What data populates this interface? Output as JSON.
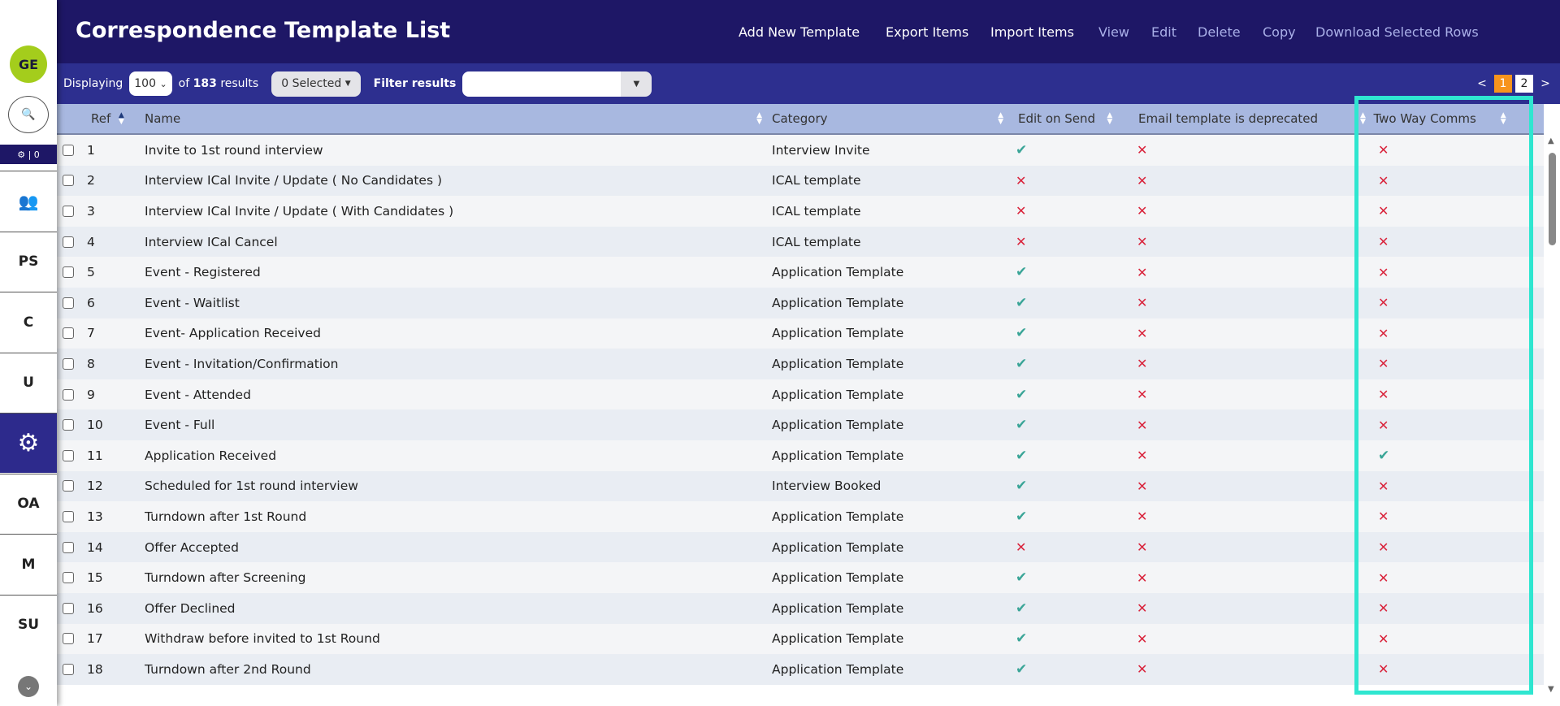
{
  "sidebar": {
    "avatar": "GE",
    "badge": "| 0",
    "items": [
      {
        "label": "",
        "icon": "users-icon"
      },
      {
        "label": "PS"
      },
      {
        "label": "C"
      },
      {
        "label": "U"
      },
      {
        "label": "",
        "icon": "gear-icon",
        "active": true
      },
      {
        "label": "OA"
      },
      {
        "label": "M"
      },
      {
        "label": "SU"
      }
    ]
  },
  "header": {
    "title": "Correspondence Template List",
    "actions": [
      "Add New Template",
      "Export Items",
      "Import Items",
      "View",
      "Edit",
      "Delete",
      "Copy",
      "Download Selected Rows"
    ]
  },
  "toolbar": {
    "displaying": "Displaying",
    "page_size": "100",
    "of": "of",
    "total": "183",
    "results": "results",
    "selected": "0 Selected",
    "filter_label": "Filter results",
    "filter_value": "",
    "pages": [
      "1",
      "2"
    ],
    "current_page": "1",
    "prev": "<",
    "next": ">"
  },
  "columns": [
    "Ref",
    "Name",
    "Category",
    "Edit on Send",
    "Email template is deprecated",
    "Two Way Comms"
  ],
  "rows": [
    {
      "ref": "1",
      "name": "Invite to 1st round interview",
      "category": "Interview Invite",
      "edit": true,
      "dep": false,
      "two": false
    },
    {
      "ref": "2",
      "name": "Interview ICal Invite / Update ( No Candidates )",
      "category": "ICAL template",
      "edit": false,
      "dep": false,
      "two": false
    },
    {
      "ref": "3",
      "name": "Interview ICal Invite / Update ( With Candidates )",
      "category": "ICAL template",
      "edit": false,
      "dep": false,
      "two": false
    },
    {
      "ref": "4",
      "name": "Interview ICal Cancel",
      "category": "ICAL template",
      "edit": false,
      "dep": false,
      "two": false
    },
    {
      "ref": "5",
      "name": "Event - Registered",
      "category": "Application Template",
      "edit": true,
      "dep": false,
      "two": false
    },
    {
      "ref": "6",
      "name": "Event - Waitlist",
      "category": "Application Template",
      "edit": true,
      "dep": false,
      "two": false
    },
    {
      "ref": "7",
      "name": "Event- Application Received",
      "category": "Application Template",
      "edit": true,
      "dep": false,
      "two": false
    },
    {
      "ref": "8",
      "name": "Event - Invitation/Confirmation",
      "category": "Application Template",
      "edit": true,
      "dep": false,
      "two": false
    },
    {
      "ref": "9",
      "name": "Event - Attended",
      "category": "Application Template",
      "edit": true,
      "dep": false,
      "two": false
    },
    {
      "ref": "10",
      "name": "Event - Full",
      "category": "Application Template",
      "edit": true,
      "dep": false,
      "two": false
    },
    {
      "ref": "11",
      "name": "Application Received",
      "category": "Application Template",
      "edit": true,
      "dep": false,
      "two": true
    },
    {
      "ref": "12",
      "name": "Scheduled for 1st round interview",
      "category": "Interview Booked",
      "edit": true,
      "dep": false,
      "two": false
    },
    {
      "ref": "13",
      "name": "Turndown after 1st Round",
      "category": "Application Template",
      "edit": true,
      "dep": false,
      "two": false
    },
    {
      "ref": "14",
      "name": "Offer Accepted",
      "category": "Application Template",
      "edit": false,
      "dep": false,
      "two": false
    },
    {
      "ref": "15",
      "name": "Turndown after Screening",
      "category": "Application Template",
      "edit": true,
      "dep": false,
      "two": false
    },
    {
      "ref": "16",
      "name": "Offer Declined",
      "category": "Application Template",
      "edit": true,
      "dep": false,
      "two": false
    },
    {
      "ref": "17",
      "name": "Withdraw before invited to 1st Round",
      "category": "Application Template",
      "edit": true,
      "dep": false,
      "two": false
    },
    {
      "ref": "18",
      "name": "Turndown after 2nd Round",
      "category": "Application Template",
      "edit": true,
      "dep": false,
      "two": false
    }
  ],
  "colors": {
    "header": "#1e1766",
    "toolbar": "#2d2f8f",
    "table_header": "#a8b8e0",
    "check": "#3aa597",
    "cross": "#d9233b",
    "highlight": "#2fe6d0",
    "current_page": "#f7941d",
    "avatar": "#a4cd1c"
  }
}
